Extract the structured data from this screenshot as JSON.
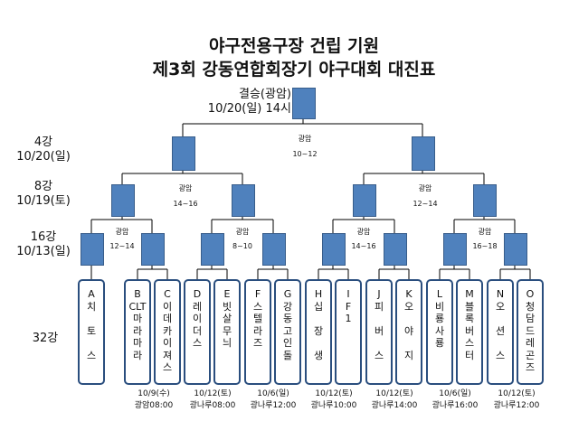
{
  "title": {
    "line1": "야구전용구장 건립 기원",
    "line2": "제3회 강동연합회장기 야구대회 대진표"
  },
  "final": {
    "line1": "결승(광암)",
    "line2": "10/20(일) 14시"
  },
  "rounds": {
    "r4": {
      "name": "4강",
      "date": "10/20(일)"
    },
    "r8": {
      "name": "8강",
      "date": "10/19(토)"
    },
    "r16": {
      "name": "16강",
      "date": "10/13(일)"
    },
    "r32": {
      "name": "32강"
    }
  },
  "semi_label": {
    "venue": "광암",
    "time": "10~12"
  },
  "quarter_labels": [
    {
      "venue": "광암",
      "time": "14~16"
    },
    {
      "venue": "광암",
      "time": "12~14"
    }
  ],
  "r16_labels": [
    {
      "venue": "광암",
      "time": "12~14"
    },
    {
      "venue": "광암",
      "time": "8~10"
    },
    {
      "venue": "광암",
      "time": "14~16"
    },
    {
      "venue": "광암",
      "time": "16~18"
    }
  ],
  "teams": [
    {
      "letter": "A",
      "name": "치\n\n토\n\n스"
    },
    {
      "letter": "B",
      "name": "CLT\n마\n라\n마\n라"
    },
    {
      "letter": "C",
      "name": "이\n데\n카\n이\n져\n스"
    },
    {
      "letter": "D",
      "name": "레\n이\n더\n스"
    },
    {
      "letter": "E",
      "name": "빗\n살\n무\n늬"
    },
    {
      "letter": "F",
      "name": "스\n텔\n라\n즈"
    },
    {
      "letter": "G",
      "name": "강\n동\n고\n인\n돌"
    },
    {
      "letter": "H",
      "name": "십\n\n장\n\n생"
    },
    {
      "letter": "I",
      "name": "F\n1"
    },
    {
      "letter": "J",
      "name": "피\n\n버\n\n스"
    },
    {
      "letter": "K",
      "name": "오\n\n야\n\n지"
    },
    {
      "letter": "L",
      "name": "비\n룡\n사\n룡"
    },
    {
      "letter": "M",
      "name": "블\n록\n버\n스\n터"
    },
    {
      "letter": "N",
      "name": "오\n\n션\n\n스"
    },
    {
      "letter": "O",
      "name": "청\n담\n드\n레\n곤\n즈"
    }
  ],
  "r32_schedule": [
    {
      "date": "10/9(수)",
      "venue": "광암08:00"
    },
    {
      "date": "10/12(토)",
      "venue": "광나루08:00"
    },
    {
      "date": "10/6(일)",
      "venue": "광나루12:00"
    },
    {
      "date": "10/12(토)",
      "venue": "광나루10:00"
    },
    {
      "date": "10/12(토)",
      "venue": "광나루14:00"
    },
    {
      "date": "10/6(일)",
      "venue": "광나루16:00"
    },
    {
      "date": "10/12(토)",
      "venue": "광나루12:00"
    }
  ],
  "colors": {
    "node": "#4f81bd",
    "line": "#000000",
    "team_border": "#2a4e7e"
  }
}
